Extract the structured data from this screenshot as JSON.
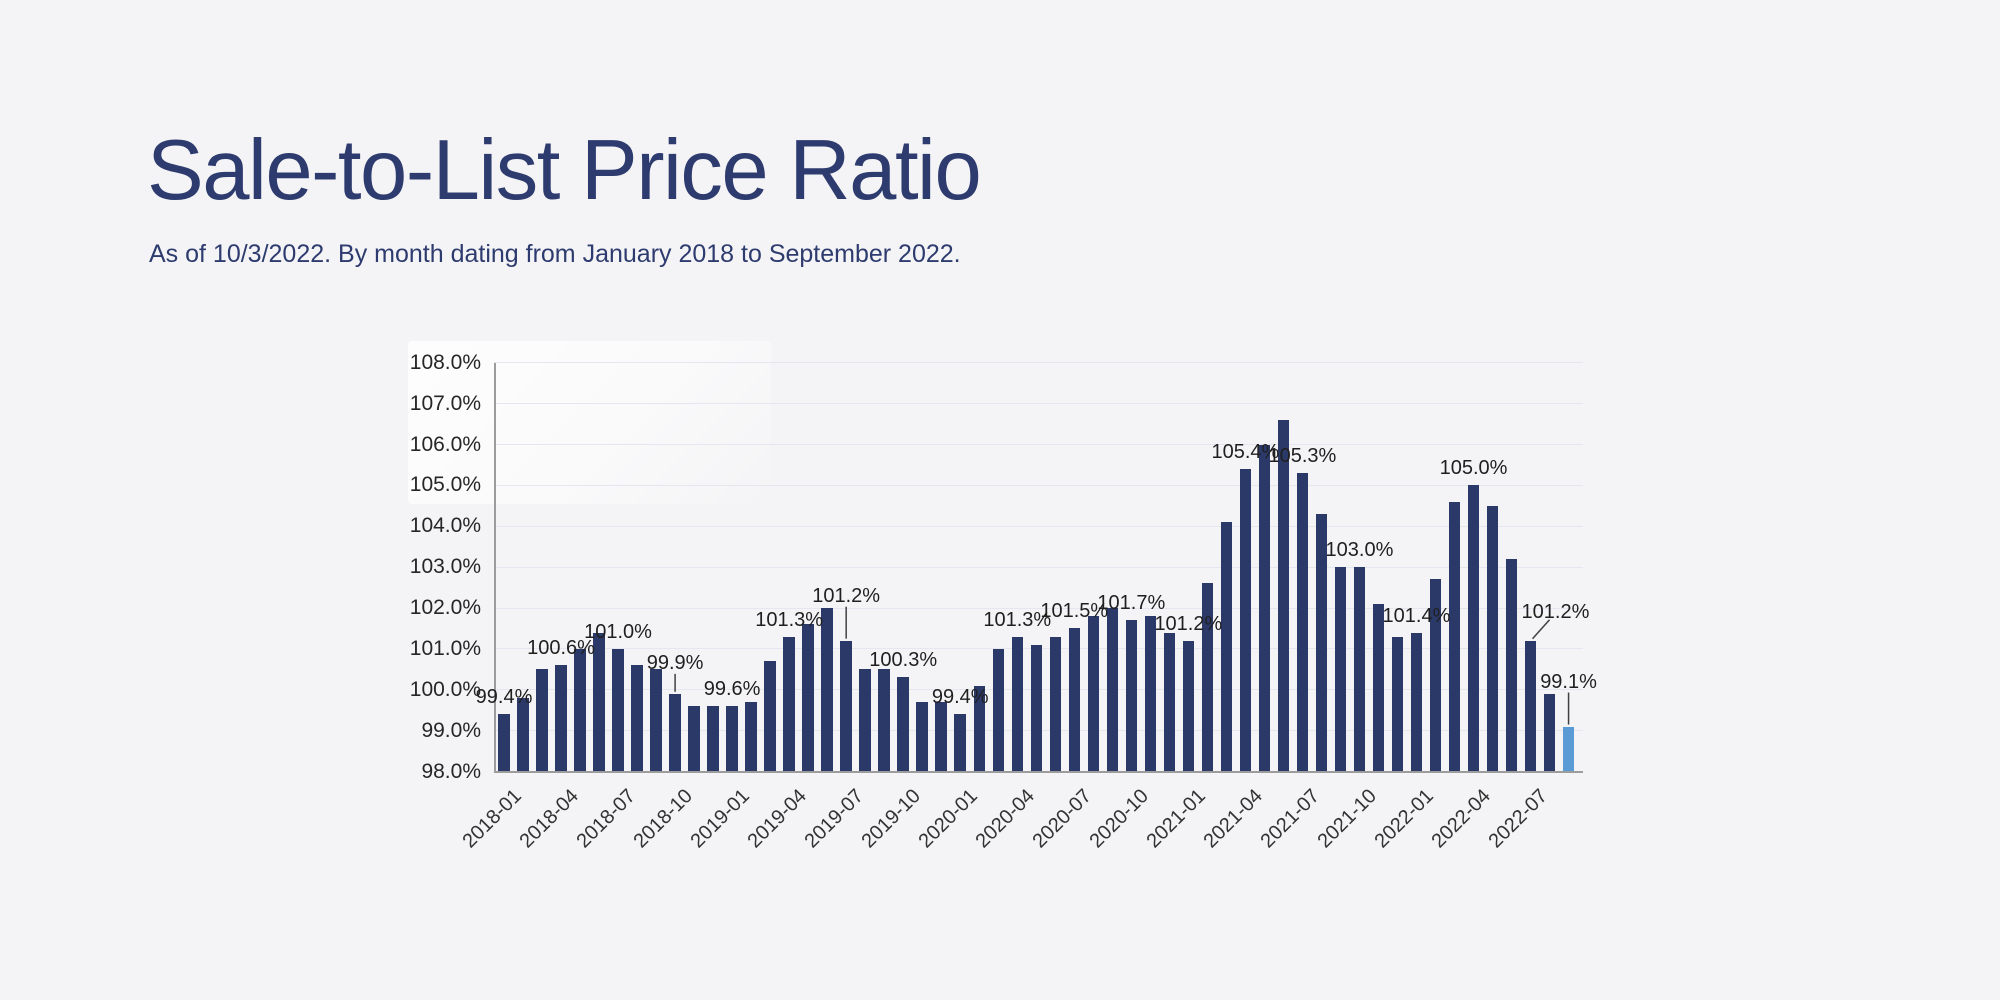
{
  "header": {
    "title": "Sale-to-List Price Ratio",
    "subtitle": "As of 10/3/2022. By month dating from January 2018 to September 2022."
  },
  "colors": {
    "background": "#f4f4f6",
    "title_text": "#2d3b6e",
    "bar": "#2b3968",
    "highlight_bar": "#5b9bd5",
    "gridline": "#e4e7ef",
    "axis_line": "#9c9c9c",
    "axis_text": "#262626",
    "xtick_text": "#333333",
    "data_label_text": "#1f1f1f",
    "leader_line": "#404040"
  },
  "chart_data": {
    "type": "bar",
    "title": "Sale-to-List Price Ratio",
    "subtitle": "As of 10/3/2022. By month dating from January 2018 to September 2022.",
    "xlabel": "",
    "ylabel": "",
    "unit": "%",
    "ylim": [
      98.0,
      108.0
    ],
    "ytick_step": 1.0,
    "grid": true,
    "legend": "none",
    "x": [
      "2018-01",
      "2018-02",
      "2018-03",
      "2018-04",
      "2018-05",
      "2018-06",
      "2018-07",
      "2018-08",
      "2018-09",
      "2018-10",
      "2018-11",
      "2018-12",
      "2019-01",
      "2019-02",
      "2019-03",
      "2019-04",
      "2019-05",
      "2019-06",
      "2019-07",
      "2019-08",
      "2019-09",
      "2019-10",
      "2019-11",
      "2019-12",
      "2020-01",
      "2020-02",
      "2020-03",
      "2020-04",
      "2020-05",
      "2020-06",
      "2020-07",
      "2020-08",
      "2020-09",
      "2020-10",
      "2020-11",
      "2020-12",
      "2021-01",
      "2021-02",
      "2021-03",
      "2021-04",
      "2021-05",
      "2021-06",
      "2021-07",
      "2021-08",
      "2021-09",
      "2021-10",
      "2021-11",
      "2021-12",
      "2022-01",
      "2022-02",
      "2022-03",
      "2022-04",
      "2022-05",
      "2022-06",
      "2022-07",
      "2022-08",
      "2022-09"
    ],
    "values": [
      99.4,
      99.8,
      100.5,
      100.6,
      101.0,
      101.4,
      101.0,
      100.6,
      100.5,
      99.9,
      99.6,
      99.6,
      99.6,
      99.7,
      100.7,
      101.3,
      101.6,
      102.0,
      101.2,
      100.5,
      100.5,
      100.3,
      99.7,
      99.7,
      99.4,
      100.1,
      101.0,
      101.3,
      101.1,
      101.3,
      101.5,
      101.8,
      102.0,
      101.7,
      101.8,
      101.4,
      101.2,
      102.6,
      104.1,
      105.4,
      106.0,
      106.6,
      105.3,
      104.3,
      103.0,
      103.0,
      102.1,
      101.3,
      101.4,
      102.7,
      104.6,
      105.0,
      104.5,
      103.2,
      101.2,
      99.9,
      99.1
    ],
    "highlight_month": "2022-09",
    "ytick_labels": [
      "98.0%",
      "99.0%",
      "100.0%",
      "101.0%",
      "102.0%",
      "103.0%",
      "104.0%",
      "105.0%",
      "106.0%",
      "107.0%",
      "108.0%"
    ],
    "xtick_labels": [
      "2018-01",
      "2018-04",
      "2018-07",
      "2018-10",
      "2019-01",
      "2019-04",
      "2019-07",
      "2019-10",
      "2020-01",
      "2020-04",
      "2020-07",
      "2020-10",
      "2021-01",
      "2021-04",
      "2021-07",
      "2021-10",
      "2022-01",
      "2022-04",
      "2022-07"
    ],
    "data_labels": [
      {
        "month": "2018-01",
        "text": "99.4%",
        "leader": "none"
      },
      {
        "month": "2018-04",
        "text": "100.6%",
        "leader": "none"
      },
      {
        "month": "2018-07",
        "text": "101.0%",
        "leader": "none"
      },
      {
        "month": "2018-10",
        "text": "99.9%",
        "leader": "short-vertical"
      },
      {
        "month": "2019-01",
        "text": "99.6%",
        "leader": "none"
      },
      {
        "month": "2019-04",
        "text": "101.3%",
        "leader": "none"
      },
      {
        "month": "2019-07",
        "text": "101.2%",
        "leader": "long-vertical"
      },
      {
        "month": "2019-10",
        "text": "100.3%",
        "leader": "none"
      },
      {
        "month": "2020-01",
        "text": "99.4%",
        "leader": "none"
      },
      {
        "month": "2020-04",
        "text": "101.3%",
        "leader": "none"
      },
      {
        "month": "2020-07",
        "text": "101.5%",
        "leader": "none"
      },
      {
        "month": "2020-10",
        "text": "101.7%",
        "leader": "none"
      },
      {
        "month": "2021-01",
        "text": "101.2%",
        "leader": "none"
      },
      {
        "month": "2021-04",
        "text": "105.4%",
        "leader": "none"
      },
      {
        "month": "2021-07",
        "text": "105.3%",
        "leader": "none"
      },
      {
        "month": "2021-10",
        "text": "103.0%",
        "leader": "none"
      },
      {
        "month": "2022-01",
        "text": "101.4%",
        "leader": "none"
      },
      {
        "month": "2022-04",
        "text": "105.0%",
        "leader": "none"
      },
      {
        "month": "2022-07",
        "text": "101.2%",
        "leader": "diagonal"
      },
      {
        "month": "2022-09",
        "text": "99.1%",
        "leader": "long-vertical"
      }
    ]
  }
}
